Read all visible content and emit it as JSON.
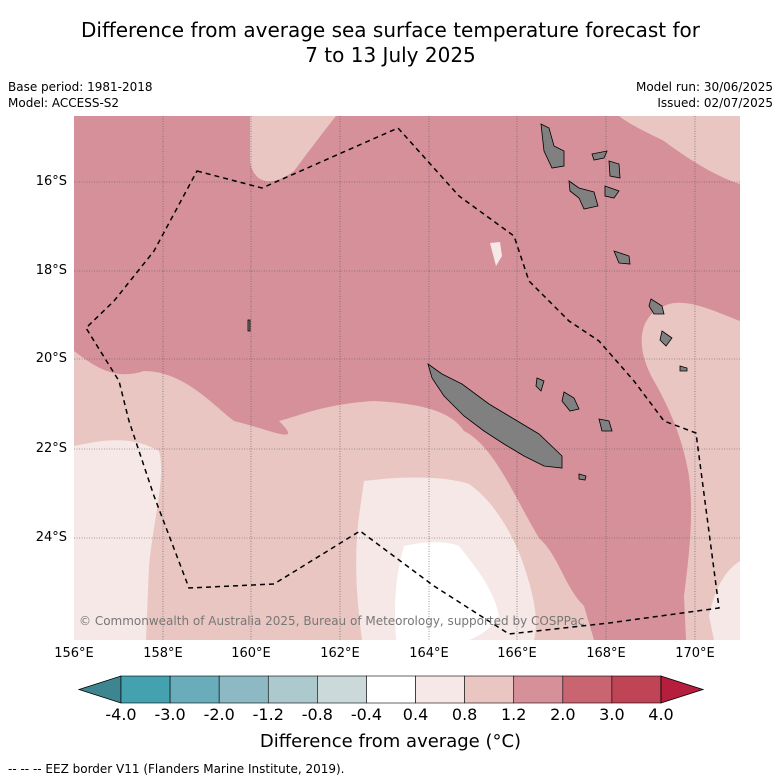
{
  "title_line1": "Difference from average sea surface temperature forecast for",
  "title_line2": "7 to 13 July 2025",
  "base_period": "Base period: 1981-2018",
  "model": "Model: ACCESS-S2",
  "model_run": "Model run: 30/06/2025",
  "issued": "Issued: 02/07/2025",
  "lat_labels": [
    "16°S",
    "18°S",
    "20°S",
    "22°S",
    "24°S"
  ],
  "lon_labels": [
    "156°E",
    "158°E",
    "160°E",
    "162°E",
    "164°E",
    "166°E",
    "168°E",
    "170°E"
  ],
  "copyright": "© Commonwealth of Australia 2025, Bureau of Meteorology, supported by COSPPac",
  "colorbar": {
    "ticks": [
      "-4.0",
      "-3.0",
      "-2.0",
      "-1.2",
      "-0.8",
      "-0.4",
      "0.4",
      "0.8",
      "1.2",
      "2.0",
      "3.0",
      "4.0"
    ],
    "colors": [
      "#44a1b0",
      "#69adbb",
      "#8db9c4",
      "#acc9cd",
      "#cbd9da",
      "#ffffff",
      "#f5e8e6",
      "#e9c6c2",
      "#d5909a",
      "#c96471",
      "#bf4456"
    ],
    "under_color": "#3d8590",
    "over_color": "#b51e3c",
    "label": "Difference from average (°C)"
  },
  "legend_note": "--  --  -- EEZ border V11 (Flanders Marine Institute, 2019).",
  "colors": {
    "land": "#808080",
    "grid": "#555555"
  }
}
